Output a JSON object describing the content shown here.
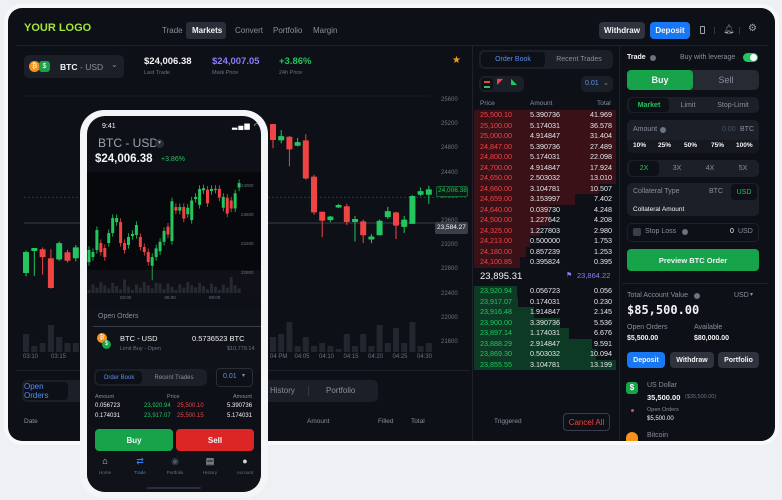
{
  "header": {
    "logo": "YOUR LOGO",
    "nav": [
      "Trade",
      "Markets",
      "Convert",
      "Portfolio",
      "Margin"
    ],
    "active_nav": "Markets",
    "withdraw": "Withdraw",
    "deposit": "Deposit",
    "icons": [
      "mobile-icon",
      "bell-icon",
      "gear-icon"
    ]
  },
  "ticker": {
    "pair_base": "BTC",
    "pair_quote": "- USD",
    "last_trade": "$24,006.38",
    "last_trade_label": "Last Trade",
    "mark_price": "$24,007.05",
    "mark_price_label": "Mark Price",
    "change": "+3.86%",
    "change_label": "24h Price"
  },
  "main_chart": {
    "y_ticks": [
      "25600",
      "25200",
      "24800",
      "24400",
      "24000",
      "23600",
      "23200",
      "22800",
      "22400",
      "22000",
      "21600"
    ],
    "x_labels_left": [
      "03:10",
      "03:15"
    ],
    "x_labels_right": [
      "04 PM",
      "04:05",
      "04:10",
      "04:15",
      "04:20",
      "04:25",
      "04:30"
    ],
    "last_price_label": "24,006.38",
    "last_price": 24006.38,
    "crosshair_label": "23,584.27",
    "crosshair_price": 23584.27,
    "candles_left": [
      [
        22757,
        23130,
        22700,
        23104
      ],
      [
        23120,
        23170,
        22710,
        23170
      ],
      [
        23150,
        23180,
        22730,
        23020
      ],
      [
        23000,
        23150,
        22500,
        22510
      ],
      [
        22980,
        23280,
        22960,
        23250
      ],
      [
        23100,
        23140,
        22930,
        22960
      ],
      [
        23000,
        23220,
        22950,
        23180
      ]
    ],
    "volumes_left": [
      0.6,
      0.2,
      0.3,
      0.9,
      0.5,
      0.3,
      0.3
    ],
    "candles_right": [
      [
        25220,
        25220,
        24820,
        24955
      ],
      [
        24950,
        25120,
        24900,
        25020
      ],
      [
        25010,
        25020,
        24520,
        24800
      ],
      [
        24860,
        24990,
        24850,
        24920
      ],
      [
        24950,
        25050,
        24300,
        24320
      ],
      [
        24350,
        24380,
        23720,
        23760
      ],
      [
        23770,
        23770,
        23350,
        23620
      ],
      [
        23630,
        23700,
        23600,
        23690
      ],
      [
        23840,
        23900,
        23830,
        23880
      ],
      [
        23860,
        23900,
        23550,
        23600
      ],
      [
        23600,
        23700,
        23280,
        23650
      ],
      [
        23610,
        23640,
        23250,
        23380
      ],
      [
        23310,
        23400,
        23250,
        23360
      ],
      [
        23380,
        23640,
        23380,
        23620
      ],
      [
        23680,
        23850,
        23650,
        23780
      ],
      [
        23760,
        23770,
        23320,
        23540
      ],
      [
        23520,
        23700,
        23420,
        23640
      ],
      [
        23570,
        24040,
        23570,
        24030
      ],
      [
        24050,
        24170,
        24030,
        24110
      ],
      [
        24050,
        24200,
        23900,
        24140
      ]
    ],
    "volumes_right": [
      0.5,
      0.6,
      1.0,
      0.2,
      0.5,
      0.2,
      0.3,
      0.2,
      0.1,
      0.6,
      0.2,
      0.6,
      0.2,
      0.9,
      0.3,
      0.8,
      0.3,
      1.0,
      0.2,
      0.3
    ],
    "up_color": "#22c55e",
    "down_color": "#ef4444"
  },
  "order_book": {
    "tabs": [
      "Order Book",
      "Recent Trades"
    ],
    "active_tab": "Order Book",
    "precision": "0.01",
    "headers": [
      "Price",
      "Amount",
      "Total"
    ],
    "asks": [
      [
        "25,500.10",
        "5.390736",
        "41.969"
      ],
      [
        "25,100.00",
        "5.174031",
        "36.578"
      ],
      [
        "25,000.00",
        "4.914847",
        "31.404"
      ],
      [
        "24,847.00",
        "5.390736",
        "27.489"
      ],
      [
        "24,800.00",
        "5.174031",
        "22.098"
      ],
      [
        "24,700.00",
        "4.914847",
        "17.924"
      ],
      [
        "24,650.00",
        "2.503032",
        "13.010"
      ],
      [
        "24,660.00",
        "3.104781",
        "10.507"
      ],
      [
        "24,659.00",
        "3.153997",
        "7.402"
      ],
      [
        "24,640.00",
        "0.039730",
        "4.248"
      ],
      [
        "24,500.00",
        "1.227642",
        "4.208"
      ],
      [
        "24,325.00",
        "1.227803",
        "2.980"
      ],
      [
        "24,213.00",
        "0.500000",
        "1.753"
      ],
      [
        "24,180.00",
        "0.857239",
        "1.253"
      ],
      [
        "24,100.85",
        "0.395824",
        "0.395"
      ]
    ],
    "mid_price": "23,895.31",
    "mark_price": "23,864.22",
    "bids": [
      [
        "23,920.94",
        "0.056723",
        "0.056"
      ],
      [
        "23,917.07",
        "0.174031",
        "0.230"
      ],
      [
        "23,916.48",
        "1.914847",
        "2.145"
      ],
      [
        "23,900.00",
        "3.390736",
        "5.536"
      ],
      [
        "23,897.14",
        "1.174031",
        "6.676"
      ],
      [
        "23,888.29",
        "2.914847",
        "9.591"
      ],
      [
        "23,869.30",
        "0.503032",
        "10.094"
      ],
      [
        "23,855.55",
        "3.104781",
        "13.199"
      ]
    ]
  },
  "trade": {
    "title": "Trade",
    "leverage_label": "Buy with leverage",
    "leverage_on": true,
    "buy": "Buy",
    "sell": "Sell",
    "order_types": [
      "Market",
      "Limit",
      "Stop-Limit"
    ],
    "active_order_type": "Market",
    "amount_label": "Amount",
    "amount_value": "0.00",
    "amount_unit": "BTC",
    "percents": [
      "10%",
      "25%",
      "50%",
      "75%",
      "100%"
    ],
    "leverages": [
      "2X",
      "3X",
      "4X",
      "5X"
    ],
    "active_leverage": "2X",
    "collateral_type_label": "Collateral Type",
    "collateral_options": [
      "BTC",
      "USD"
    ],
    "active_collateral": "USD",
    "collateral_amount_label": "Collateral Amount",
    "stop_loss_label": "Stop Loss",
    "stop_loss_value": "0",
    "stop_loss_unit": "USD",
    "preview": "Preview BTC Order"
  },
  "account": {
    "total_label": "Total Account Value",
    "currency": "USD",
    "total": "$85,500.00",
    "open_orders_label": "Open Orders",
    "open_orders": "$5,500.00",
    "available_label": "Available",
    "available": "$80,000.00",
    "deposit": "Deposit",
    "withdraw": "Withdraw",
    "portfolio": "Portfolio",
    "assets": [
      {
        "name": "US Dollar",
        "amount": "35,500.00",
        "value": "($35,500.00)",
        "sub_label": "Open Orders",
        "sub_value": "$5,500.00"
      },
      {
        "name": "Bitcoin"
      }
    ]
  },
  "bottom": {
    "tabs": [
      "Open Orders",
      "History",
      "Portfolio"
    ],
    "columns": [
      "Date",
      "Amount",
      "Filled",
      "Total",
      "Triggered"
    ],
    "cancel_all": "Cancel All"
  },
  "phone": {
    "time": "9:41",
    "pair": "BTC - USD",
    "price": "$24,006.38",
    "change": "+3.86%",
    "y_ticks": [
      "24000",
      "23600",
      "23200",
      "22800"
    ],
    "x_labels": [
      "03:00",
      "06:00",
      "09:00"
    ],
    "candles": [
      [
        22951,
        23167,
        22901,
        23117
      ],
      [
        23020,
        23139,
        22970,
        23089
      ],
      [
        23117,
        23443,
        23067,
        23393
      ],
      [
        23213,
        23263,
        23039,
        23089
      ],
      [
        23144,
        23194,
        22970,
        23020
      ],
      [
        23213,
        23401,
        23163,
        23351
      ],
      [
        23351,
        23608,
        23301,
        23558
      ],
      [
        23503,
        23608,
        23453,
        23558
      ],
      [
        23503,
        23553,
        23163,
        23213
      ],
      [
        23213,
        23263,
        23067,
        23117
      ],
      [
        23186,
        23346,
        23136,
        23296
      ],
      [
        23310,
        23390,
        23260,
        23340
      ],
      [
        23324,
        23512,
        23274,
        23462
      ],
      [
        23296,
        23346,
        23108,
        23158
      ],
      [
        23158,
        23208,
        23039,
        23089
      ],
      [
        23089,
        23139,
        22901,
        22951
      ],
      [
        22900,
        23070,
        22700,
        23020
      ],
      [
        23020,
        23190,
        22970,
        23140
      ],
      [
        23100,
        23280,
        23050,
        23230
      ],
      [
        23230,
        23430,
        23180,
        23380
      ],
      [
        23440,
        23490,
        23280,
        23330
      ],
      [
        23240,
        23840,
        23190,
        23790
      ],
      [
        23710,
        23760,
        23610,
        23660
      ],
      [
        23660,
        23760,
        23610,
        23710
      ],
      [
        23710,
        23760,
        23500,
        23550
      ],
      [
        23610,
        23750,
        23560,
        23700
      ],
      [
        23530,
        23850,
        23480,
        23800
      ],
      [
        23820,
        23900,
        23770,
        23850
      ],
      [
        23740,
        24010,
        23690,
        23960
      ],
      [
        23940,
        24020,
        23890,
        23970
      ],
      [
        23950,
        24000,
        23710,
        23760
      ],
      [
        23930,
        24010,
        23880,
        23960
      ],
      [
        23950,
        24010,
        23900,
        23960
      ],
      [
        23960,
        24010,
        23790,
        23840
      ],
      [
        23700,
        23900,
        23650,
        23850
      ],
      [
        23840,
        23890,
        23570,
        23620
      ],
      [
        23800,
        23850,
        23640,
        23690
      ],
      [
        23690,
        23950,
        23640,
        23900
      ],
      [
        23980,
        24090,
        23930,
        24040
      ]
    ],
    "open_orders_title": "Open Orders",
    "order_pair": "BTC - USD",
    "order_type": "Limit Buy - Open",
    "order_amount": "0.5736523 BTC",
    "order_value": "$10,778.14",
    "ob_tabs": [
      "Order Book",
      "Recent Trades"
    ],
    "precision": "0.01",
    "ob_headers": [
      "Amount",
      "Price",
      "Amount"
    ],
    "ob_rows": [
      [
        "0.056723",
        "23,920.94",
        "25,500.10",
        "5.390736"
      ],
      [
        "0.174031",
        "23,917.07",
        "25,500.15",
        "5.174031"
      ]
    ],
    "buy": "Buy",
    "sell": "Sell",
    "nav": [
      "Home",
      "Trade",
      "Portfolio",
      "History",
      "Account"
    ],
    "active_nav": "Trade"
  }
}
